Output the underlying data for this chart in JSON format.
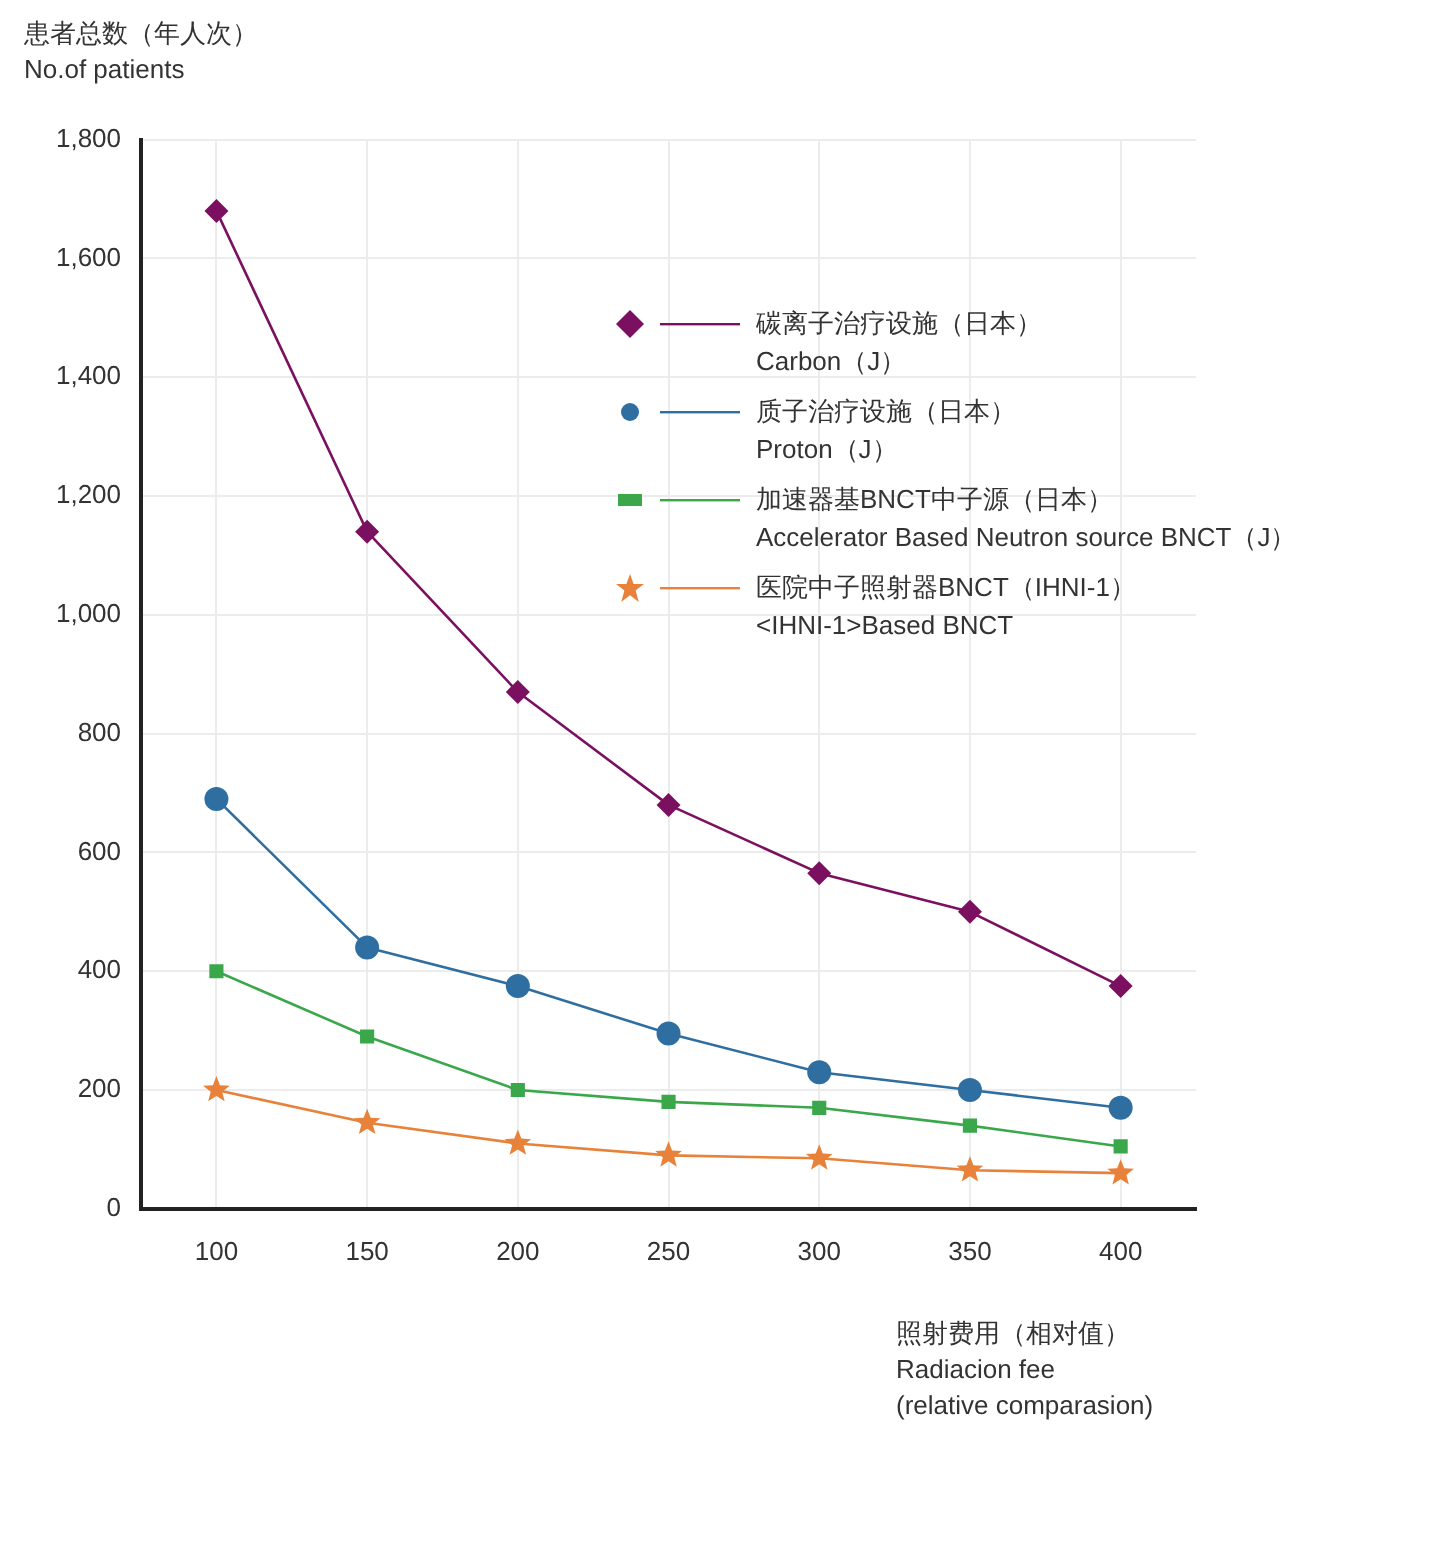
{
  "chart_data": {
    "type": "line",
    "ylabel": "患者总数（年人次）\nNo.of patients",
    "xlabel": "照射费用（相对值）\nRadiacion fee\n(relative comparasion)",
    "categories": [
      "100",
      "150",
      "200",
      "250",
      "300",
      "350",
      "400"
    ],
    "series": [
      {
        "name": "碳离子治疗设施（日本）\nCarbon（J）",
        "color": "#7b1060",
        "marker": "diamond",
        "values": [
          1680,
          1140,
          870,
          680,
          565,
          500,
          375
        ]
      },
      {
        "name": "质子治疗设施（日本）\nProton（J）",
        "color": "#2f6ea0",
        "marker": "circle",
        "values": [
          690,
          440,
          375,
          295,
          230,
          200,
          170
        ]
      },
      {
        "name": "加速器基BNCT中子源（日本）\nAccelerator Based Neutron source BNCT（J）",
        "color": "#3aa84a",
        "marker": "square",
        "values": [
          400,
          290,
          200,
          180,
          170,
          140,
          105
        ]
      },
      {
        "name": "医院中子照射器BNCT（IHNI-1）\n<IHNI-1>Based BNCT",
        "color": "#e8823a",
        "marker": "star",
        "values": [
          200,
          145,
          110,
          90,
          85,
          65,
          60
        ]
      }
    ],
    "ylim": [
      0,
      1800
    ],
    "yticks": [
      0,
      {
        "value": 200,
        "label": "200"
      },
      400,
      600,
      800,
      {
        "value": 1000,
        "label": "1,000"
      },
      {
        "value": 1200,
        "label": "1,200"
      },
      {
        "value": 1400,
        "label": "1,400"
      },
      {
        "value": 1600,
        "label": "1,600"
      },
      {
        "value": 1800,
        "label": "1,800"
      }
    ],
    "grid": true,
    "legend": "top right"
  }
}
